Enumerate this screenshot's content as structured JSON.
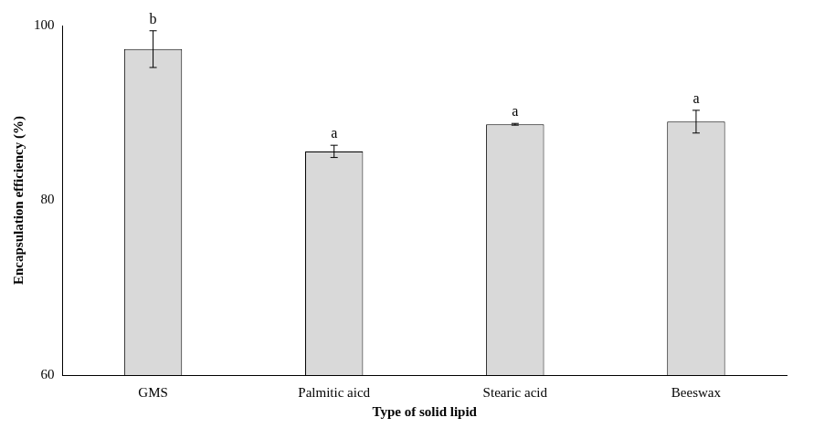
{
  "chart_data": {
    "type": "bar",
    "categories": [
      "GMS",
      "Palmitic aicd",
      "Stearic acid",
      "Beeswax"
    ],
    "values": [
      97.3,
      85.6,
      88.7,
      89.0
    ],
    "errors": [
      2.1,
      0.7,
      0.1,
      1.3
    ],
    "annotations": [
      "b",
      "a",
      "a",
      "a"
    ],
    "color": "#d9d9d9",
    "x_label": "Type of solid lipid",
    "y_label": "Encapsulation efficiency (%)",
    "ylim": [
      60,
      100
    ],
    "yticks": [
      60,
      80,
      100
    ],
    "grid": false
  }
}
